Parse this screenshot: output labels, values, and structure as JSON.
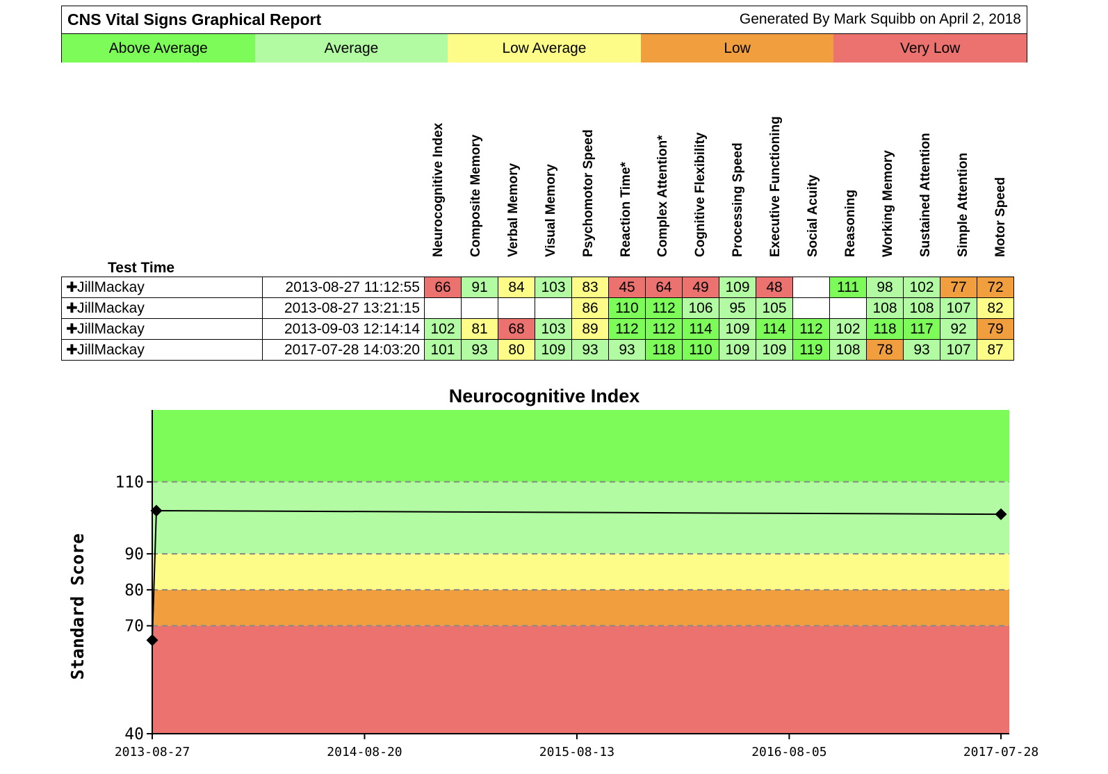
{
  "header": {
    "title": "CNS Vital Signs Graphical Report",
    "generated": "Generated By Mark Squibb on April 2, 2018"
  },
  "legend": [
    {
      "label": "Above Average",
      "color": "#7dfc59"
    },
    {
      "label": "Average",
      "color": "#b2fba3"
    },
    {
      "label": "Low Average",
      "color": "#fdfc88"
    },
    {
      "label": "Low",
      "color": "#f19f3e"
    },
    {
      "label": "Very Low",
      "color": "#ec7270"
    }
  ],
  "table": {
    "test_time_label": "Test Time",
    "columns": [
      "Neurocognitive Index",
      "Composite Memory",
      "Verbal Memory",
      "Visual Memory",
      "Psychomotor Speed",
      "Reaction Time*",
      "Complex Attention*",
      "Cognitive Flexibility",
      "Processing Speed",
      "Executive Functioning",
      "Social Acuity",
      "Reasoning",
      "Working Memory",
      "Sustained Attention",
      "Simple Attention",
      "Motor Speed"
    ],
    "rows": [
      {
        "name": "JillMackay",
        "time": "2013-08-27 11:12:55",
        "scores": [
          "66",
          "91",
          "84",
          "103",
          "83",
          "45",
          "64",
          "49",
          "109",
          "48",
          "",
          "111",
          "98",
          "102",
          "77",
          "72"
        ],
        "colors": [
          "#ec7270",
          "#b2fba3",
          "#fdfc88",
          "#b2fba3",
          "#fdfc88",
          "#ec7270",
          "#ec7270",
          "#ec7270",
          "#b2fba3",
          "#ec7270",
          "#ffffff",
          "#7dfc59",
          "#b2fba3",
          "#b2fba3",
          "#f19f3e",
          "#f19f3e"
        ]
      },
      {
        "name": "JillMackay",
        "time": "2013-08-27 13:21:15",
        "scores": [
          "",
          "",
          "",
          "",
          "86",
          "110",
          "112",
          "106",
          "95",
          "105",
          "",
          "",
          "108",
          "108",
          "107",
          "82"
        ],
        "colors": [
          "#ffffff",
          "#ffffff",
          "#ffffff",
          "#ffffff",
          "#fdfc88",
          "#7dfc59",
          "#7dfc59",
          "#b2fba3",
          "#b2fba3",
          "#b2fba3",
          "#ffffff",
          "#ffffff",
          "#b2fba3",
          "#b2fba3",
          "#b2fba3",
          "#fdfc88"
        ]
      },
      {
        "name": "JillMackay",
        "time": "2013-09-03 12:14:14",
        "scores": [
          "102",
          "81",
          "68",
          "103",
          "89",
          "112",
          "112",
          "114",
          "109",
          "114",
          "112",
          "102",
          "118",
          "117",
          "92",
          "79"
        ],
        "colors": [
          "#b2fba3",
          "#fdfc88",
          "#ec7270",
          "#b2fba3",
          "#fdfc88",
          "#7dfc59",
          "#7dfc59",
          "#7dfc59",
          "#b2fba3",
          "#7dfc59",
          "#7dfc59",
          "#b2fba3",
          "#7dfc59",
          "#7dfc59",
          "#b2fba3",
          "#f19f3e"
        ]
      },
      {
        "name": "JillMackay",
        "time": "2017-07-28 14:03:20",
        "scores": [
          "101",
          "93",
          "80",
          "109",
          "93",
          "93",
          "118",
          "110",
          "109",
          "109",
          "119",
          "108",
          "78",
          "93",
          "107",
          "87"
        ],
        "colors": [
          "#b2fba3",
          "#b2fba3",
          "#fdfc88",
          "#b2fba3",
          "#b2fba3",
          "#b2fba3",
          "#7dfc59",
          "#7dfc59",
          "#b2fba3",
          "#b2fba3",
          "#7dfc59",
          "#b2fba3",
          "#f19f3e",
          "#b2fba3",
          "#b2fba3",
          "#fdfc88"
        ]
      }
    ]
  },
  "chart_data": {
    "type": "line",
    "title": "Neurocognitive Index",
    "ylabel": "Standard Score",
    "xlabel": "",
    "ylim": [
      40,
      130
    ],
    "yticks": [
      40,
      70,
      80,
      90,
      110
    ],
    "xticks": [
      "2013-08-27",
      "2014-08-20",
      "2015-08-13",
      "2016-08-05",
      "2017-07-28"
    ],
    "bands": [
      {
        "from": 110,
        "to": 130,
        "label": "Above Average",
        "color": "#7dfc59"
      },
      {
        "from": 90,
        "to": 110,
        "label": "Average",
        "color": "#b2fba3"
      },
      {
        "from": 80,
        "to": 90,
        "label": "Low Average",
        "color": "#fdfc88"
      },
      {
        "from": 70,
        "to": 80,
        "label": "Low",
        "color": "#f19f3e"
      },
      {
        "from": 40,
        "to": 70,
        "label": "Very Low",
        "color": "#ec7270"
      }
    ],
    "series": [
      {
        "x": [
          "2013-08-27",
          "2013-09-03",
          "2017-07-28"
        ],
        "values": [
          66,
          102,
          101
        ]
      }
    ],
    "grid": "dashed at 70, 80, 90, 110"
  }
}
